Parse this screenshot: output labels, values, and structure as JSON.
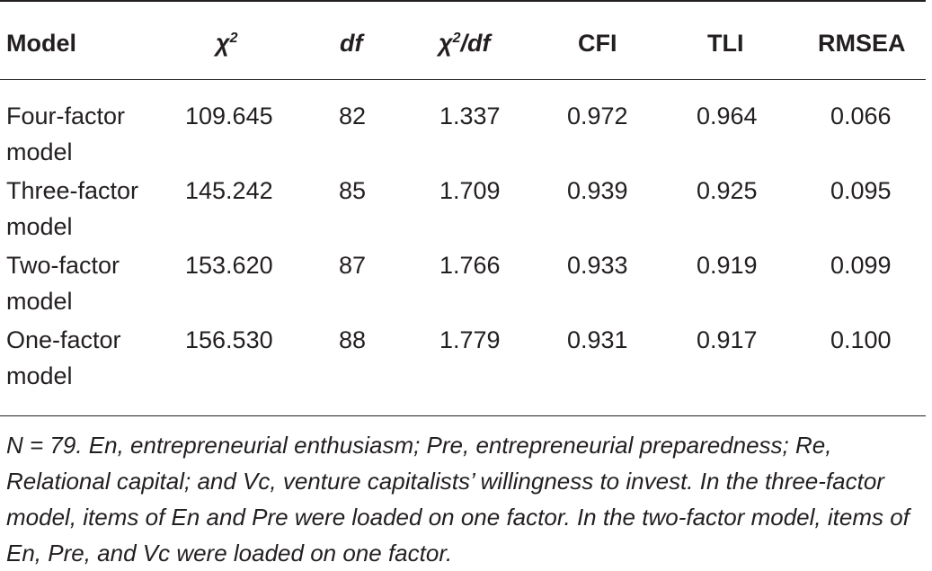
{
  "table": {
    "headers": {
      "model": "Model",
      "chi2_base": "χ",
      "chi2_sup": "2",
      "df": "df",
      "chi2df_base": "χ",
      "chi2df_sup": "2",
      "chi2df_rest": "/df",
      "cfi": "CFI",
      "tli": "TLI",
      "rmsea": "RMSEA"
    },
    "rows": [
      {
        "model": "Four-factor model",
        "chi2": "109.645",
        "df": "82",
        "chi2df": "1.337",
        "cfi": "0.972",
        "tli": "0.964",
        "rmsea": "0.066"
      },
      {
        "model": "Three-factor model",
        "chi2": "145.242",
        "df": "85",
        "chi2df": "1.709",
        "cfi": "0.939",
        "tli": "0.925",
        "rmsea": "0.095"
      },
      {
        "model": "Two-factor model",
        "chi2": "153.620",
        "df": "87",
        "chi2df": "1.766",
        "cfi": "0.933",
        "tli": "0.919",
        "rmsea": "0.099"
      },
      {
        "model": "One-factor model",
        "chi2": "156.530",
        "df": "88",
        "chi2df": "1.779",
        "cfi": "0.931",
        "tli": "0.917",
        "rmsea": "0.100"
      }
    ],
    "note": "N = 79. En, entrepreneurial enthusiasm; Pre, entrepreneurial preparedness; Re, Relational capital; and Vc, venture capitalists’ willingness to invest. In the three-factor model, items of En and Pre were loaded on one factor. In the two-factor model, items of En, Pre, and Vc were loaded on one factor."
  }
}
